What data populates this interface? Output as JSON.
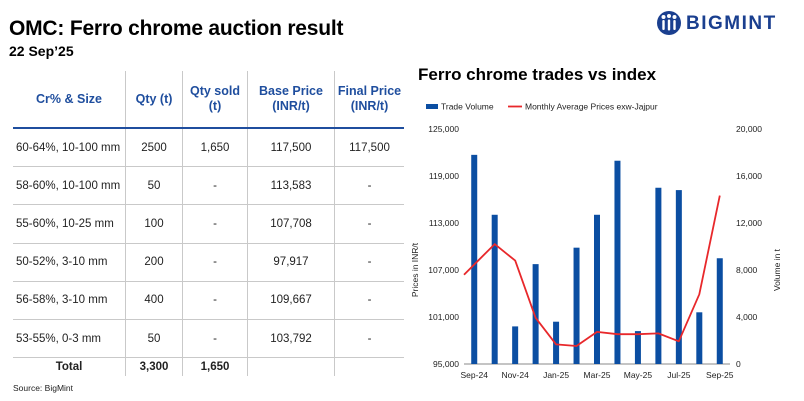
{
  "header": {
    "title": "OMC: Ferro chrome auction result",
    "date": "22 Sep’25"
  },
  "brand": {
    "name": "BIGMINT",
    "color": "#1a3f8f"
  },
  "table": {
    "headers": [
      "Cr% & Size",
      "Qty (t)",
      "Qty sold (t)",
      "Base Price (INR/t)",
      "Final Price (INR/t)"
    ],
    "rows": [
      [
        "60-64%, 10-100 mm",
        "2500",
        "1,650",
        "117,500",
        "117,500"
      ],
      [
        "58-60%, 10-100 mm",
        "50",
        "-",
        "113,583",
        "-"
      ],
      [
        "55-60%, 10-25 mm",
        "100",
        "-",
        "107,708",
        "-"
      ],
      [
        "50-52%, 3-10 mm",
        "200",
        "-",
        "97,917",
        "-"
      ],
      [
        "56-58%, 3-10 mm",
        "400",
        "-",
        "109,667",
        "-"
      ],
      [
        "53-55%, 0-3 mm",
        "50",
        "-",
        "103,792",
        "-"
      ]
    ],
    "total": [
      "Total",
      "3,300",
      "1,650",
      "",
      ""
    ]
  },
  "source": "Source: BigMint",
  "chart_data": {
    "type": "bar",
    "title": "Ferro chrome trades vs index",
    "categories": [
      "Sep-24",
      "Oct-24",
      "Nov-24",
      "Dec-24",
      "Jan-25",
      "Feb-25",
      "Mar-25",
      "Apr-25",
      "May-25",
      "Jun-25",
      "Jul-25",
      "Aug-25",
      "Sep-25"
    ],
    "x_tick_labels": [
      "Sep-24",
      "Nov-24",
      "Jan-25",
      "Mar-25",
      "May-25",
      "Jul-25",
      "Sep-25"
    ],
    "series": [
      {
        "name": "Trade Volume",
        "kind": "bar",
        "axis": "right",
        "color": "#0b4ea2",
        "values": [
          17800,
          12700,
          3200,
          8500,
          3600,
          9900,
          12700,
          17300,
          2800,
          15000,
          14800,
          4400,
          9000
        ]
      },
      {
        "name": "Monthly Average Prices exw-Jajpur",
        "kind": "line",
        "axis": "left",
        "color": "#e8282b",
        "values": [
          106400,
          110300,
          108200,
          100900,
          97500,
          97300,
          99100,
          98800,
          98800,
          98900,
          97900,
          103900,
          116500
        ]
      }
    ],
    "ylabel": "Prices in INR/t",
    "ylabel_right": "Volume in t",
    "ylim": [
      95000,
      125000
    ],
    "yticks": [
      "95,000",
      "101,000",
      "107,000",
      "113,000",
      "119,000",
      "125,000"
    ],
    "ylim_right": [
      0,
      20000
    ],
    "yticks_right": [
      "0",
      "4,000",
      "8,000",
      "12,000",
      "16,000",
      "20,000"
    ],
    "legend": "top-left"
  }
}
